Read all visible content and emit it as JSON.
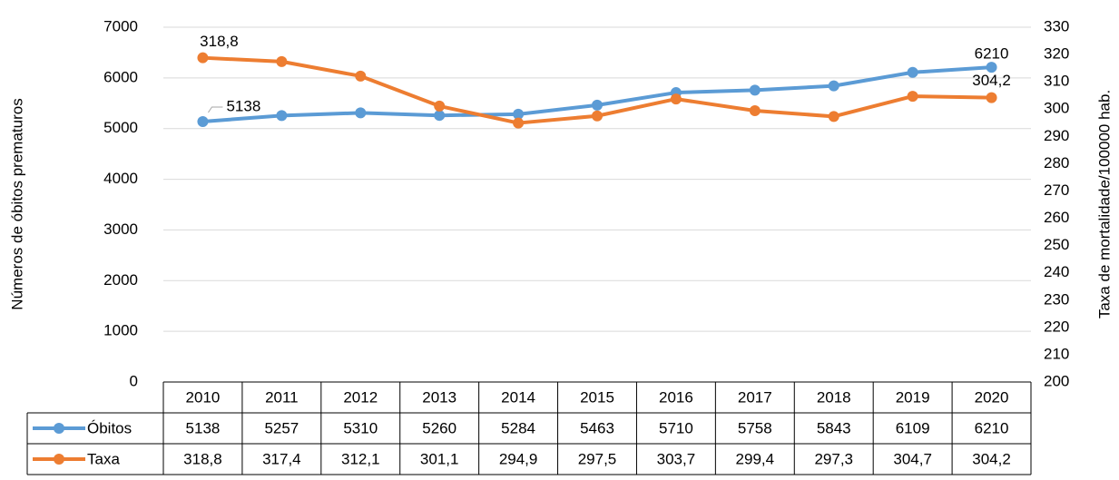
{
  "chart_data": {
    "type": "line",
    "categories": [
      "2010",
      "2011",
      "2012",
      "2013",
      "2014",
      "2015",
      "2016",
      "2017",
      "2018",
      "2019",
      "2020"
    ],
    "series": [
      {
        "name": "Óbitos",
        "color": "#5b9bd5",
        "values": [
          5138,
          5257,
          5310,
          5260,
          5284,
          5463,
          5710,
          5758,
          5843,
          6109,
          6210
        ]
      },
      {
        "name": "Taxa",
        "color": "#ed7d31",
        "axis": "y2",
        "values": [
          318.8,
          317.4,
          312.1,
          301.1,
          294.9,
          297.5,
          303.7,
          299.4,
          297.3,
          304.7,
          304.2
        ],
        "value_labels": [
          "318,8",
          "317,4",
          "312,1",
          "301,1",
          "294,9",
          "297,5",
          "303,7",
          "299,4",
          "297,3",
          "304,7",
          "304,2"
        ]
      }
    ],
    "y_label": "Números de óbitos prematuros",
    "y2_label": "Taxa de mortalidade/100000 hab.",
    "ylim": [
      0,
      7000
    ],
    "yticks": [
      0,
      1000,
      2000,
      3000,
      4000,
      5000,
      6000,
      7000
    ],
    "y2lim": [
      200,
      330
    ],
    "y2ticks": [
      200,
      210,
      220,
      230,
      240,
      250,
      260,
      270,
      280,
      290,
      300,
      310,
      320,
      330
    ],
    "grid": true,
    "legend": "table"
  }
}
